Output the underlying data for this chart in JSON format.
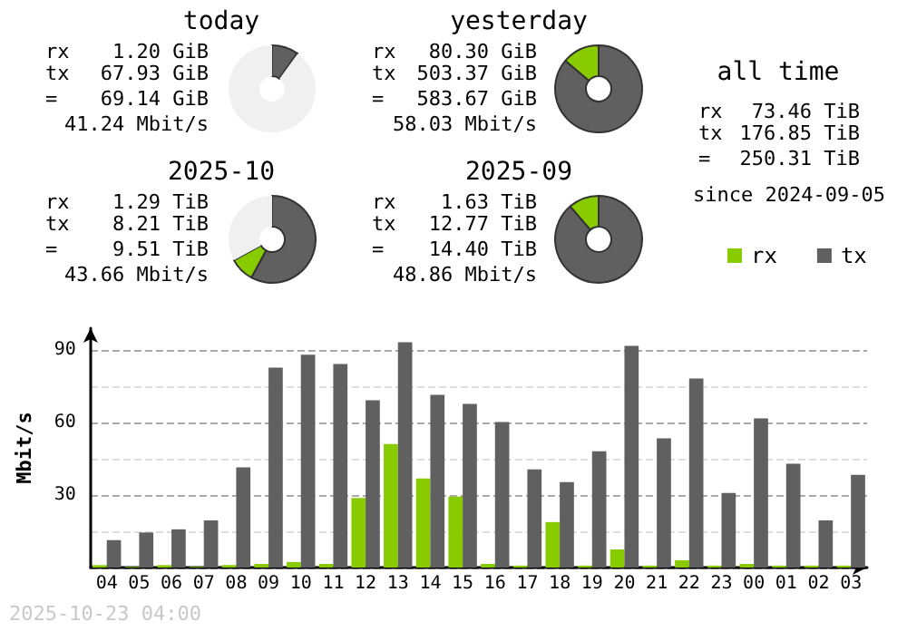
{
  "chart_data": [
    {
      "type": "donut",
      "title": "today",
      "categories": [
        null,
        null,
        null
      ],
      "values": [
        9.8,
        0.2,
        90
      ],
      "colors": [
        "#606060",
        "#88cc00",
        "#f0f0f0"
      ],
      "annotations": [
        "rx",
        "1.20 GiB",
        "tx",
        "67.93 GiB",
        "=",
        "69.14 GiB",
        "41.24 Mbit/s"
      ]
    },
    {
      "type": "donut",
      "title": "yesterday",
      "categories": [
        null,
        null,
        null
      ],
      "values": [
        86.2,
        13.8,
        0
      ],
      "colors": [
        "#606060",
        "#88cc00",
        "#f0f0f0"
      ],
      "annotations": [
        "rx",
        "80.30 GiB",
        "tx",
        "503.37 GiB",
        "=",
        "583.67 GiB",
        "58.03 Mbit/s"
      ]
    },
    {
      "type": "other",
      "title": "all time",
      "annotations": [
        "rx",
        "73.46 TiB",
        "tx",
        "176.85 TiB",
        "=",
        "250.31 TiB",
        "since 2024-09-05"
      ]
    },
    {
      "type": "donut",
      "title": "2025-10",
      "categories": [
        null,
        null,
        null
      ],
      "values": [
        57.9,
        9.1,
        33
      ],
      "colors": [
        "#606060",
        "#88cc00",
        "#f0f0f0"
      ],
      "annotations": [
        "rx",
        "1.29 TiB",
        "tx",
        "8.21 TiB",
        "=",
        "9.51 TiB",
        "43.66 Mbit/s"
      ]
    },
    {
      "type": "donut",
      "title": "2025-09",
      "categories": [
        null,
        null,
        null
      ],
      "values": [
        88.7,
        11.3,
        0
      ],
      "colors": [
        "#606060",
        "#88cc00",
        "#f0f0f0"
      ],
      "annotations": [
        "rx",
        "1.63 TiB",
        "tx",
        "12.77 TiB",
        "=",
        "14.40 TiB",
        "48.86 Mbit/s"
      ]
    },
    {
      "type": "bar",
      "ylabel": "Mbit/s",
      "categories": [
        "04",
        "05",
        "06",
        "07",
        "08",
        "09",
        "10",
        "11",
        "12",
        "13",
        "14",
        "15",
        "16",
        "17",
        "18",
        "19",
        "20",
        "21",
        "22",
        "23",
        "00",
        "01",
        "02",
        "03"
      ],
      "series": [
        {
          "name": "rx",
          "color": "#88cc00",
          "values": [
            1,
            0.3,
            1,
            0.3,
            1,
            1.5,
            2.3,
            1.5,
            28.8,
            51.1,
            36.8,
            29.3,
            1.5,
            0.8,
            18.8,
            0.8,
            7.5,
            0.8,
            3,
            0.8,
            1.5,
            0.8,
            0.8,
            0.8
          ]
        },
        {
          "name": "tx",
          "color": "#606060",
          "values": [
            11.3,
            14.5,
            15.8,
            19.5,
            41.4,
            82.7,
            88,
            84.2,
            69.2,
            93.2,
            71.4,
            67.7,
            60.2,
            40.6,
            35.3,
            48.1,
            91.7,
            53.4,
            78.2,
            30.8,
            61.7,
            42.9,
            19.5,
            38.3
          ]
        }
      ],
      "ylim": [
        0,
        99
      ],
      "yticks": [
        {
          "value": 0,
          "label": null
        },
        {
          "value": 15,
          "label": null
        },
        30,
        {
          "value": 45,
          "label": null
        },
        60,
        {
          "value": 75,
          "label": null
        },
        90
      ],
      "grid": "y",
      "legend": "top right",
      "annotations": [
        "2025-10-23 04:00"
      ]
    }
  ]
}
